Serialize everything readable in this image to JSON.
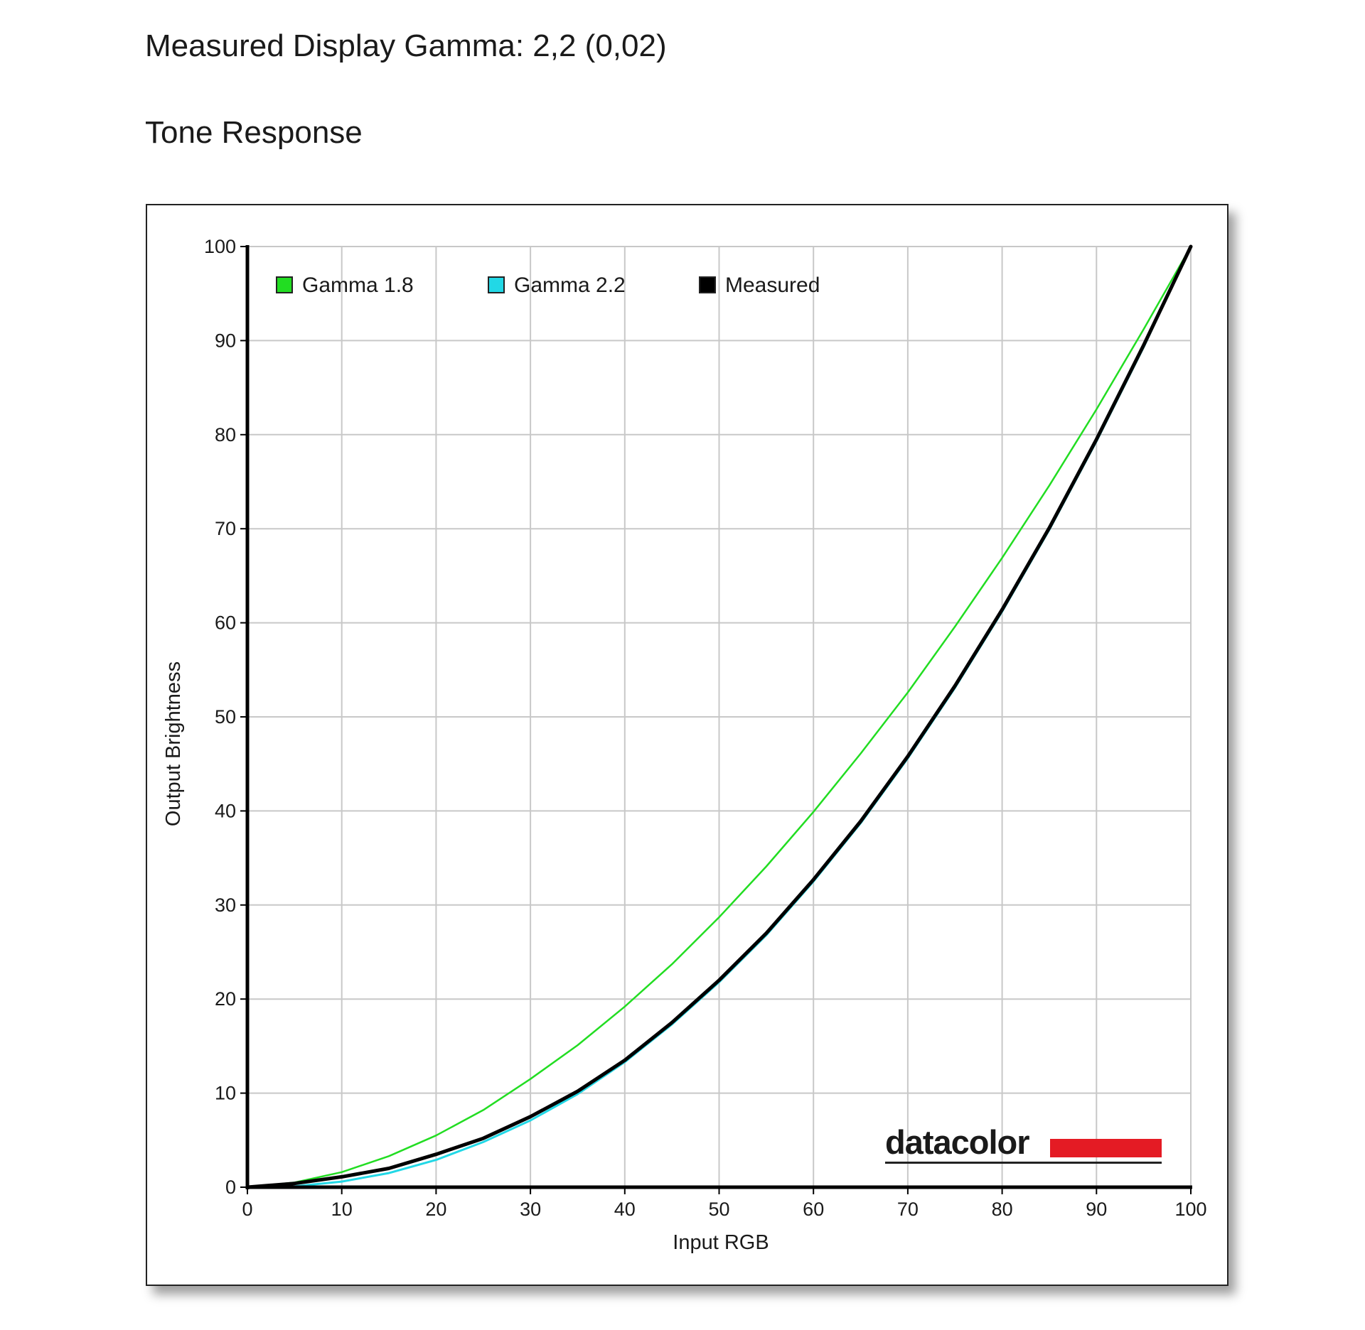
{
  "page": {
    "gamma_heading": "Measured Display Gamma: 2,2 (0,02)",
    "section_heading": "Tone Response"
  },
  "logo": {
    "text": "datacolor",
    "bar_color": "#e41b24"
  },
  "chart_data": {
    "type": "line",
    "title": "",
    "xlabel": "Input RGB",
    "ylabel": "Output Brightness",
    "xlim": [
      0,
      100
    ],
    "ylim": [
      0,
      100
    ],
    "x_ticks": [
      "0",
      "10",
      "20",
      "30",
      "40",
      "50",
      "60",
      "70",
      "80",
      "90",
      "100"
    ],
    "y_ticks": [
      "0",
      "10",
      "20",
      "30",
      "40",
      "50",
      "60",
      "70",
      "80",
      "90",
      "100"
    ],
    "grid": true,
    "legend_position": "top-left",
    "x": [
      0,
      5,
      10,
      15,
      20,
      25,
      30,
      35,
      40,
      45,
      50,
      55,
      60,
      65,
      70,
      75,
      80,
      85,
      90,
      95,
      100
    ],
    "series": [
      {
        "name": "Gamma 1.8",
        "color": "#22dd22",
        "values": [
          0,
          0.5,
          1.6,
          3.3,
          5.5,
          8.2,
          11.5,
          15.1,
          19.2,
          23.7,
          28.7,
          34.1,
          39.9,
          46.1,
          52.6,
          59.6,
          66.9,
          74.6,
          82.7,
          91.2,
          100
        ]
      },
      {
        "name": "Gamma 2.2",
        "color": "#22d8e6",
        "values": [
          0,
          0.1,
          0.6,
          1.5,
          2.9,
          4.8,
          7.1,
          9.9,
          13.3,
          17.3,
          21.8,
          26.8,
          32.5,
          38.7,
          45.6,
          53.1,
          61.2,
          69.9,
          79.3,
          89.3,
          100
        ]
      },
      {
        "name": "Measured",
        "color": "#000000",
        "values": [
          0,
          0.4,
          1.1,
          2.0,
          3.5,
          5.2,
          7.5,
          10.2,
          13.5,
          17.5,
          22.0,
          27.0,
          32.7,
          38.9,
          45.8,
          53.3,
          61.4,
          70.1,
          79.5,
          89.5,
          100
        ]
      }
    ]
  }
}
